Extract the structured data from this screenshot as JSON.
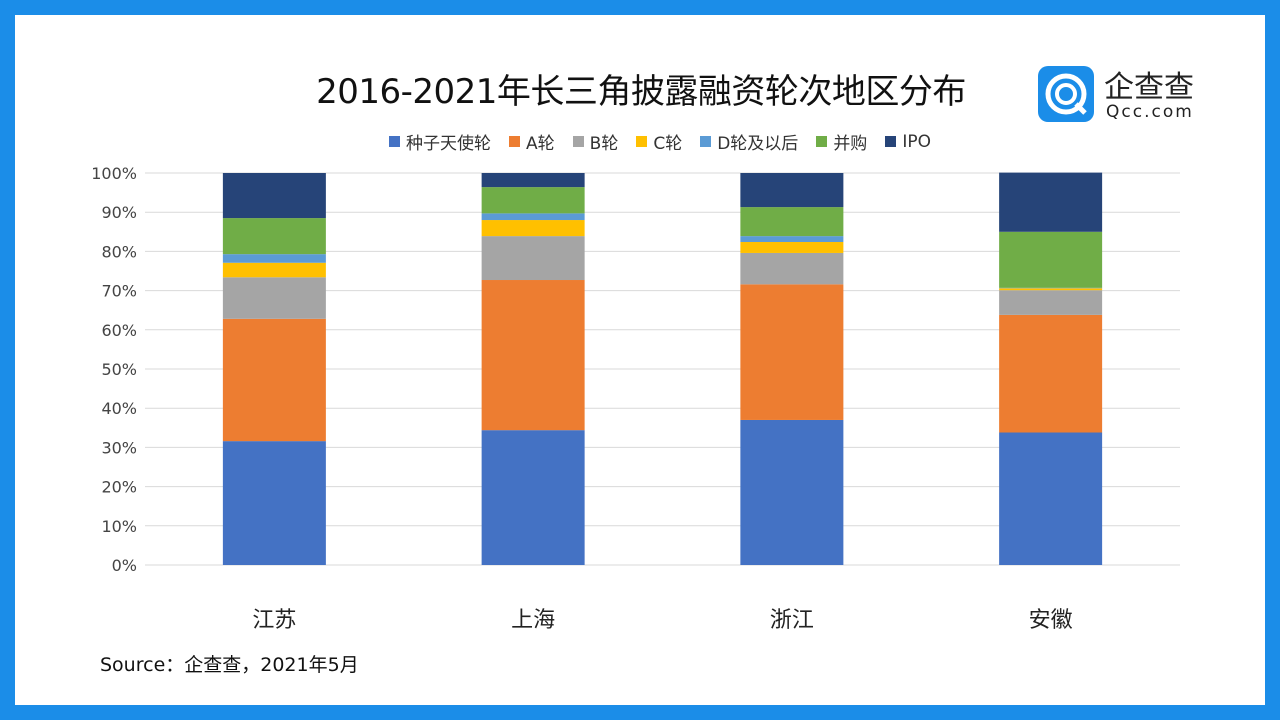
{
  "title": "2016-2021年长三角披露融资轮次地区分布",
  "logo": {
    "cn": "企查查",
    "en": "Qcc.com"
  },
  "source": "Source：企查查，2021年5月",
  "chart_data": {
    "type": "bar",
    "stacked": true,
    "percent": true,
    "title": "2016-2021年长三角披露融资轮次地区分布",
    "categories": [
      "江苏",
      "上海",
      "浙江",
      "安徽"
    ],
    "ylim": [
      0,
      100
    ],
    "yticks": [
      "0%",
      "10%",
      "20%",
      "30%",
      "40%",
      "50%",
      "60%",
      "70%",
      "80%",
      "90%",
      "100%"
    ],
    "grid": true,
    "legend_position": "top",
    "series": [
      {
        "name": "种子天使轮",
        "color": "#4472c4",
        "values": [
          31.6,
          34.4,
          37.0,
          33.8
        ]
      },
      {
        "name": "A轮",
        "color": "#ed7d31",
        "values": [
          31.2,
          38.3,
          34.6,
          30.0
        ]
      },
      {
        "name": "B轮",
        "color": "#a5a5a5",
        "values": [
          10.6,
          11.2,
          8.0,
          6.3
        ]
      },
      {
        "name": "C轮",
        "color": "#ffc000",
        "values": [
          3.7,
          4.1,
          2.8,
          0.5
        ]
      },
      {
        "name": "D轮及以后",
        "color": "#5b9bd5",
        "values": [
          2.2,
          1.7,
          1.5,
          0.1
        ]
      },
      {
        "name": "并购",
        "color": "#70ad47",
        "values": [
          9.2,
          6.7,
          7.4,
          14.3
        ]
      },
      {
        "name": "IPO",
        "color": "#264478",
        "values": [
          11.5,
          3.6,
          8.7,
          15.1
        ]
      }
    ]
  }
}
